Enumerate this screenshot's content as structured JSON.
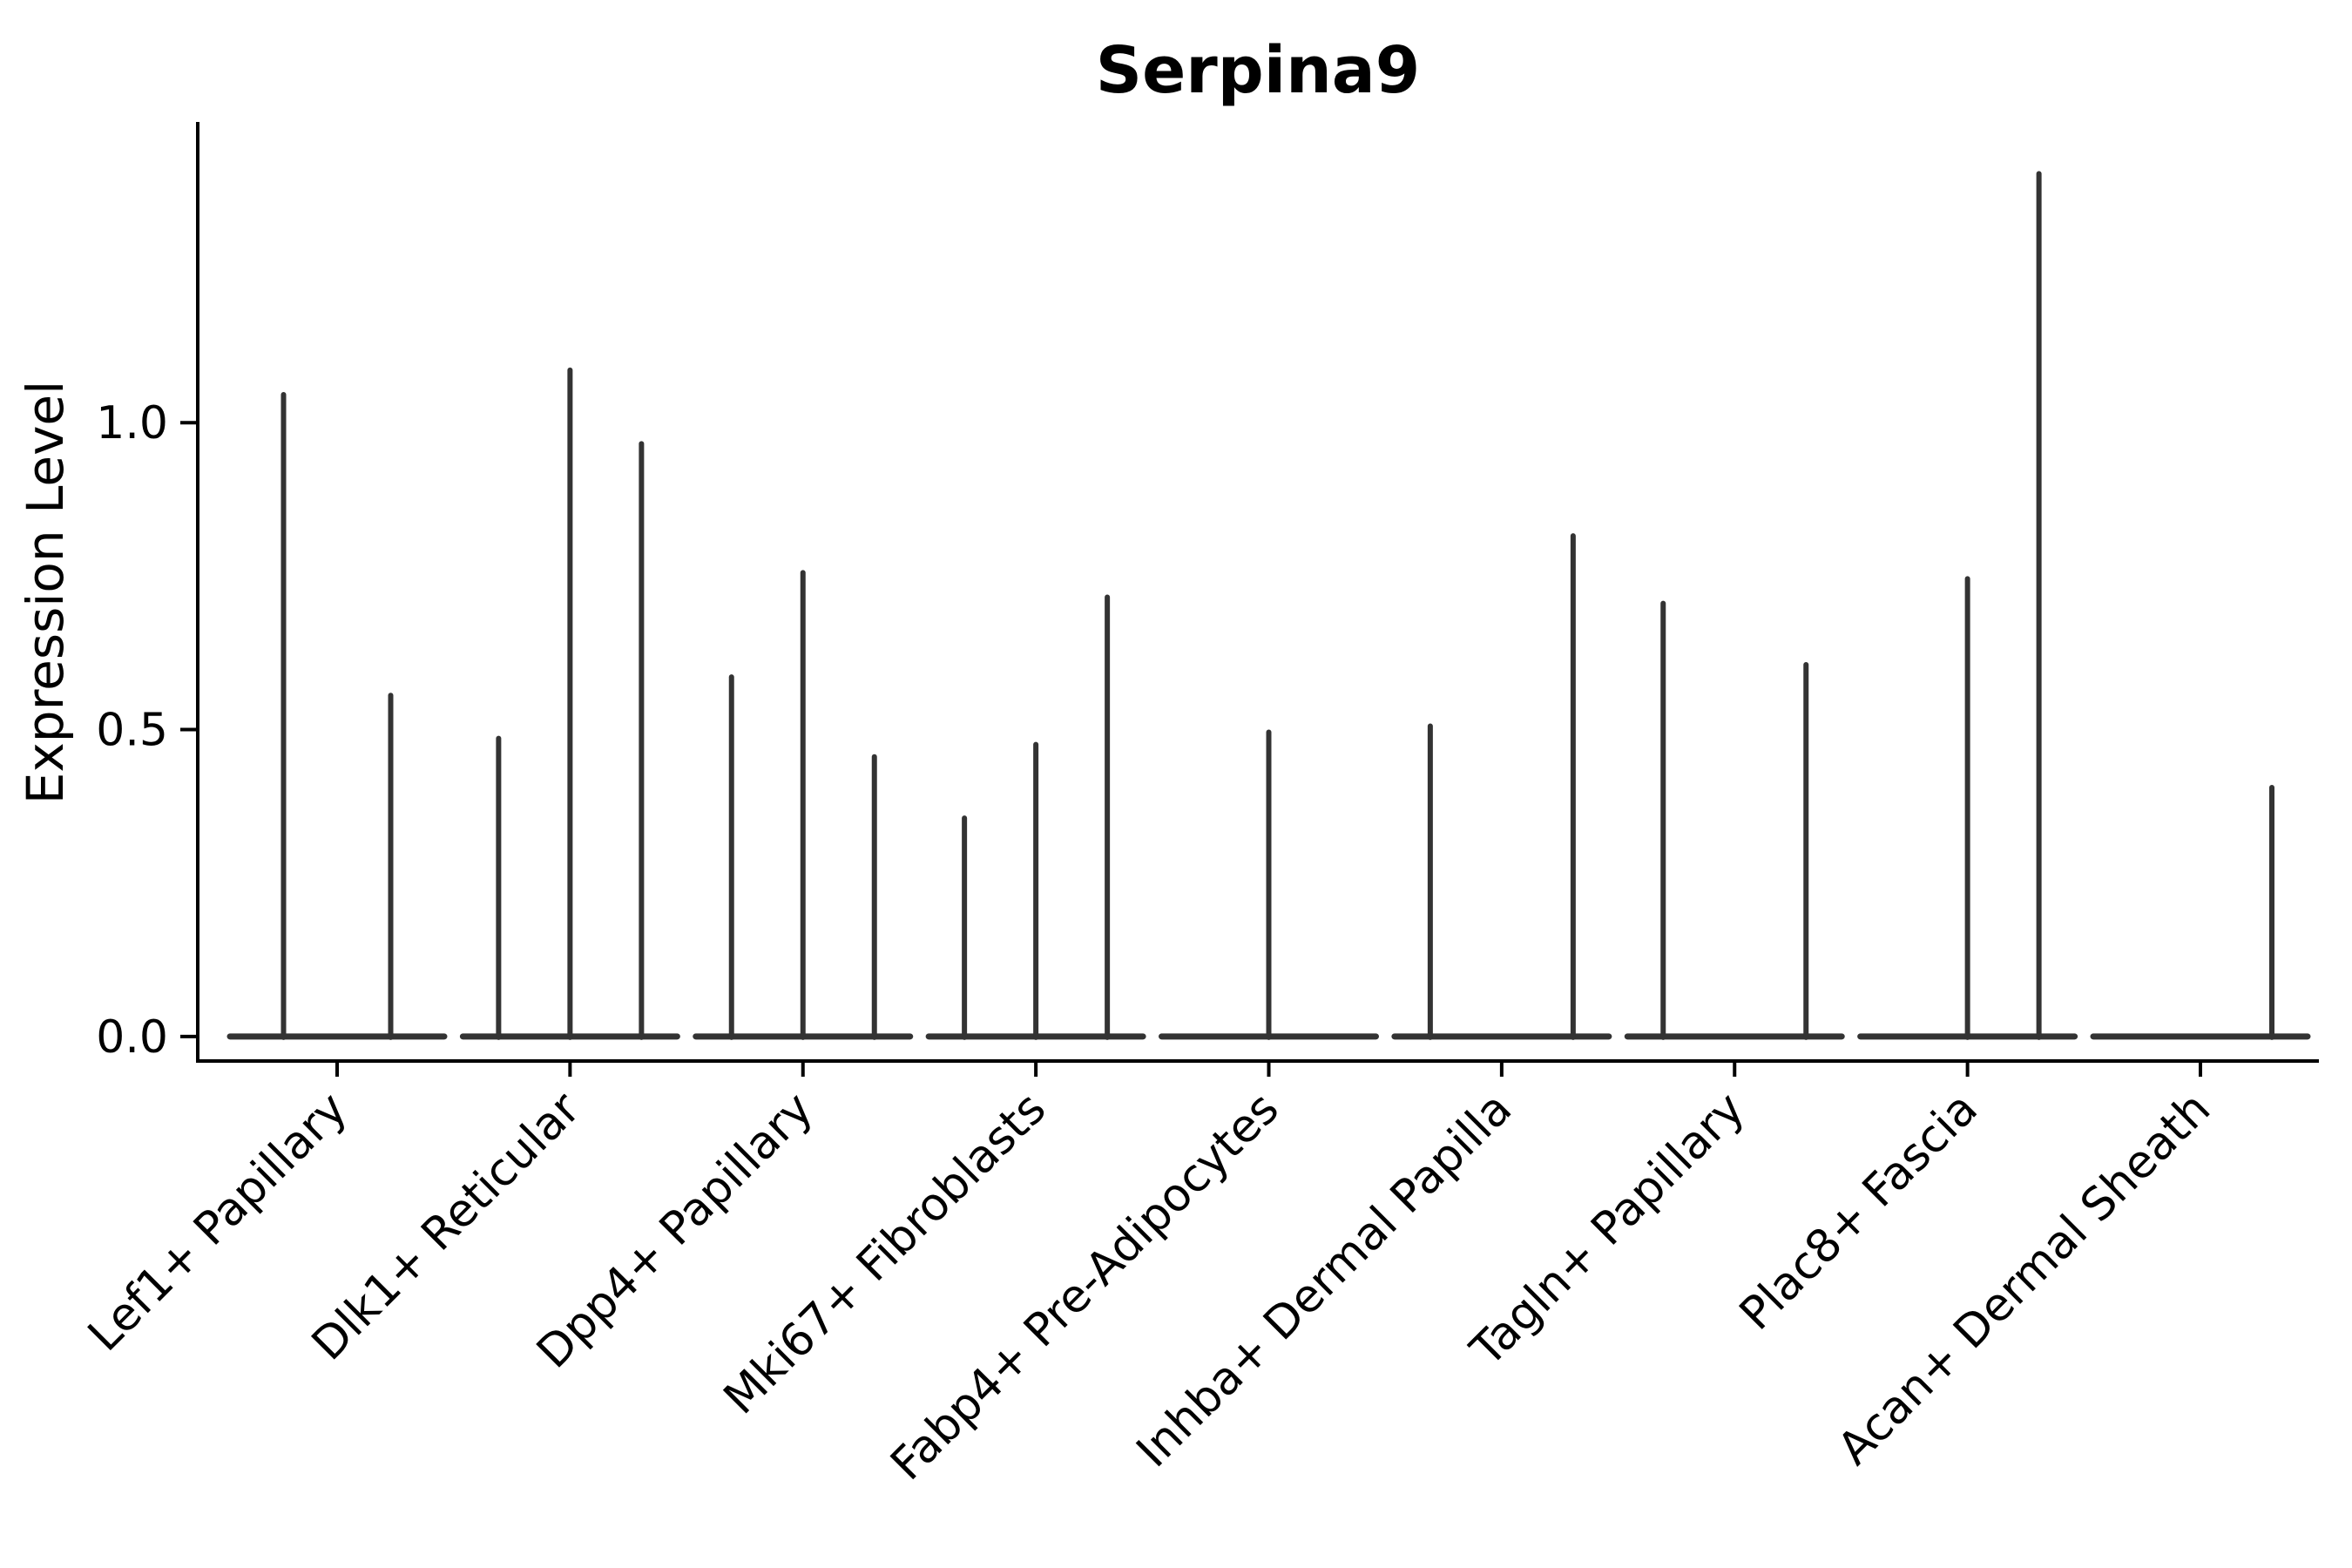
{
  "title": "Serpina9",
  "colors": {
    "violin": "#333333",
    "spine": "#000000",
    "text": "#000000",
    "background": "#ffffff"
  },
  "chart_data": {
    "type": "violin",
    "title": "Serpina9",
    "xlabel": "",
    "ylabel": "Expression Level",
    "legend": "none",
    "grid": false,
    "ylim": [
      -0.04,
      1.49
    ],
    "yticks": [
      {
        "label": "0.0",
        "value": 0.0
      },
      {
        "label": "0.5",
        "value": 0.5
      },
      {
        "label": "1.0",
        "value": 1.0
      }
    ],
    "categories": [
      "Lef1+ Papillary",
      "Dlk1+ Reticular",
      "Dpp4+ Papillary",
      "Mki67+ Fibroblasts",
      "Fabp4+ Pre-Adipocytes",
      "Inhba+ Dermal Papilla",
      "Tagln+ Papillary",
      "Plac8+ Fascia",
      "Acan+ Dermal Sheath"
    ],
    "groups": [
      {
        "label": "Lef1+ Papillary",
        "n_slots": 2,
        "spikes": [
          {
            "slot": 0,
            "value": 1.05
          },
          {
            "slot": 1,
            "value": 0.56
          }
        ]
      },
      {
        "label": "Dlk1+ Reticular",
        "n_slots": 3,
        "spikes": [
          {
            "slot": 0,
            "value": 0.49
          },
          {
            "slot": 1,
            "value": 1.09
          },
          {
            "slot": 2,
            "value": 0.97
          }
        ]
      },
      {
        "label": "Dpp4+ Papillary",
        "n_slots": 3,
        "spikes": [
          {
            "slot": 0,
            "value": 0.59
          },
          {
            "slot": 1,
            "value": 0.76
          },
          {
            "slot": 2,
            "value": 0.46
          }
        ]
      },
      {
        "label": "Mki67+ Fibroblasts",
        "n_slots": 3,
        "spikes": [
          {
            "slot": 0,
            "value": 0.36
          },
          {
            "slot": 1,
            "value": 0.48
          },
          {
            "slot": 2,
            "value": 0.72
          }
        ]
      },
      {
        "label": "Fabp4+ Pre-Adipocytes",
        "n_slots": 3,
        "spikes": [
          {
            "slot": 1,
            "value": 0.5
          }
        ]
      },
      {
        "label": "Inhba+ Dermal Papilla",
        "n_slots": 3,
        "spikes": [
          {
            "slot": 0,
            "value": 0.51
          },
          {
            "slot": 2,
            "value": 0.82
          }
        ]
      },
      {
        "label": "Tagln+ Papillary",
        "n_slots": 3,
        "spikes": [
          {
            "slot": 0,
            "value": 0.71
          },
          {
            "slot": 2,
            "value": 0.61
          }
        ]
      },
      {
        "label": "Plac8+ Fascia",
        "n_slots": 3,
        "spikes": [
          {
            "slot": 1,
            "value": 0.75
          },
          {
            "slot": 2,
            "value": 1.41
          }
        ]
      },
      {
        "label": "Acan+ Dermal Sheath",
        "n_slots": 3,
        "spikes": [
          {
            "slot": 2,
            "value": 0.41
          }
        ]
      }
    ]
  }
}
